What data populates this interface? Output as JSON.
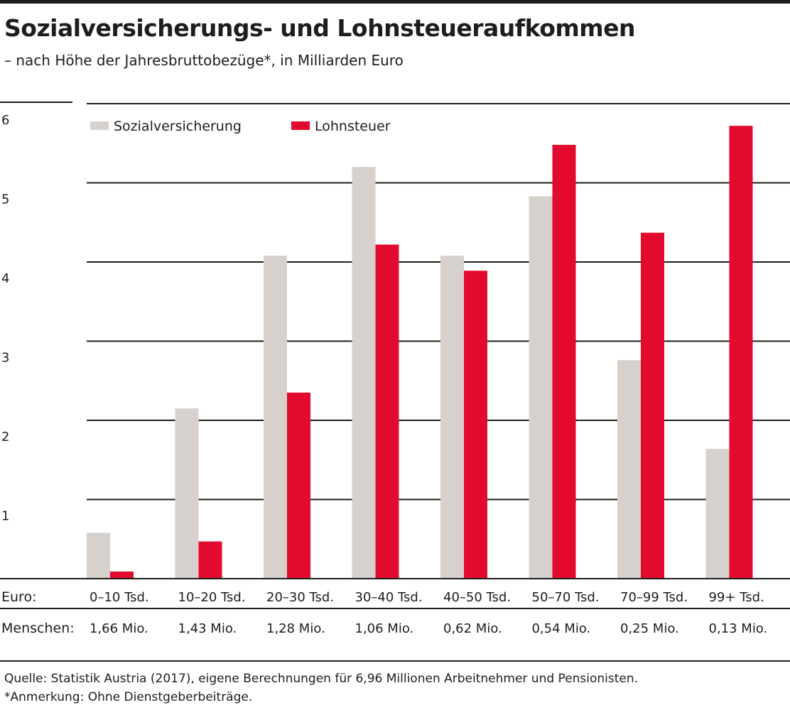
{
  "title": "Sozialversicherungs- und Lohnsteueraufkommen",
  "subtitle": "– nach Höhe der Jahresbruttobezüge*, in Milliarden Euro",
  "colors": {
    "sozialversicherung": "#d6d1cd",
    "lohnsteuer": "#e30b2d",
    "rule": "#1d1d1b"
  },
  "chart_data": {
    "type": "bar",
    "categories": [
      "0–10 Tsd.",
      "10–20 Tsd.",
      "20–30 Tsd.",
      "30–40 Tsd.",
      "40–50 Tsd.",
      "50–70 Tsd.",
      "70–99 Tsd.",
      "99+ Tsd."
    ],
    "series": [
      {
        "name": "Sozialversicherung",
        "values": [
          0.58,
          2.15,
          4.08,
          5.2,
          4.08,
          4.83,
          2.76,
          1.64
        ]
      },
      {
        "name": "Lohnsteuer",
        "values": [
          0.09,
          0.47,
          2.35,
          4.22,
          3.89,
          5.48,
          4.37,
          5.72
        ]
      }
    ],
    "yticks": [
      1,
      2,
      3,
      4,
      5,
      6
    ],
    "ylim": [
      0,
      6
    ],
    "grid": true,
    "legend": "top-left",
    "row_labels": {
      "euro": "Euro:",
      "menschen": "Menschen:"
    },
    "menschen": [
      "1,66 Mio.",
      "1,43 Mio.",
      "1,28 Mio.",
      "1,06 Mio.",
      "0,62 Mio.",
      "0,54 Mio.",
      "0,25 Mio.",
      "0,13 Mio."
    ]
  },
  "source": "Quelle: Statistik Austria (2017), eigene Berechnungen für 6,96 Millionen Arbeitnehmer und Pensionisten.",
  "note": "*Anmerkung: Ohne Dienstgeberbeiträge."
}
